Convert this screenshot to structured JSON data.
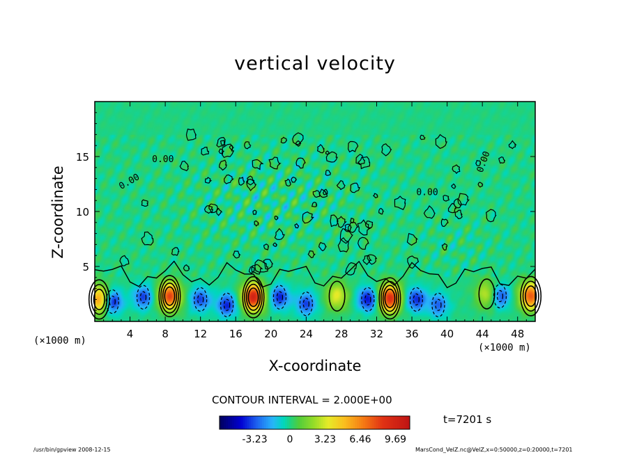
{
  "chart_data": {
    "type": "heatmap",
    "title": "vertical velocity",
    "xlabel": "X-coordinate",
    "ylabel": "Z-coordinate",
    "x_unit": "(×1000 m)",
    "xlim": [
      0,
      50
    ],
    "ylim": [
      0,
      20
    ],
    "x_ticks": [
      "4",
      "8",
      "12",
      "16",
      "20",
      "24",
      "28",
      "32",
      "36",
      "40",
      "44",
      "48"
    ],
    "x_tick_values": [
      4,
      8,
      12,
      16,
      20,
      24,
      28,
      32,
      36,
      40,
      44,
      48
    ],
    "y_ticks": [
      "5",
      "10",
      "15"
    ],
    "y_tick_values": [
      5,
      10,
      15
    ],
    "contour_interval": "CONTOUR INTERVAL = 2.000E+00",
    "contour_labels": [
      "0.00",
      "0.00",
      "0.00",
      "0.00"
    ],
    "colorbar": {
      "ticks": [
        "-3.23",
        "0",
        "3.23",
        "6.46",
        "9.69"
      ],
      "tick_values": [
        -3.23,
        0,
        3.23,
        6.46,
        9.69
      ],
      "range": [
        -6.46,
        11.0
      ]
    },
    "updraft_cores": [
      {
        "x": 0.5,
        "z": 2.0,
        "w": 6.0
      },
      {
        "x": 8.5,
        "z": 2.3,
        "w": 8.0
      },
      {
        "x": 18.0,
        "z": 2.2,
        "w": 9.5
      },
      {
        "x": 27.5,
        "z": 2.3,
        "w": 3.5
      },
      {
        "x": 33.5,
        "z": 2.1,
        "w": 9.0
      },
      {
        "x": 44.5,
        "z": 2.5,
        "w": 3.0
      },
      {
        "x": 49.5,
        "z": 2.3,
        "w": 7.5
      }
    ],
    "downdraft_cores": [
      {
        "x": 2.0,
        "z": 1.8,
        "w": -4.5
      },
      {
        "x": 5.5,
        "z": 2.2,
        "w": -3.5
      },
      {
        "x": 12.0,
        "z": 2.0,
        "w": -3.5
      },
      {
        "x": 15.0,
        "z": 1.5,
        "w": -4.0
      },
      {
        "x": 21.0,
        "z": 2.2,
        "w": -4.0
      },
      {
        "x": 24.0,
        "z": 1.6,
        "w": -3.5
      },
      {
        "x": 31.0,
        "z": 2.0,
        "w": -4.5
      },
      {
        "x": 36.5,
        "z": 2.0,
        "w": -4.0
      },
      {
        "x": 39.0,
        "z": 1.5,
        "w": -3.0
      },
      {
        "x": 46.0,
        "z": 2.3,
        "w": -3.5
      }
    ]
  },
  "time_label": "t=7201 s",
  "footer_left": "/usr/bin/gpview   2008-12-15",
  "footer_right": "MarsCond_VelZ.nc@VelZ,x=0:50000,z=0:20000,t=7201"
}
